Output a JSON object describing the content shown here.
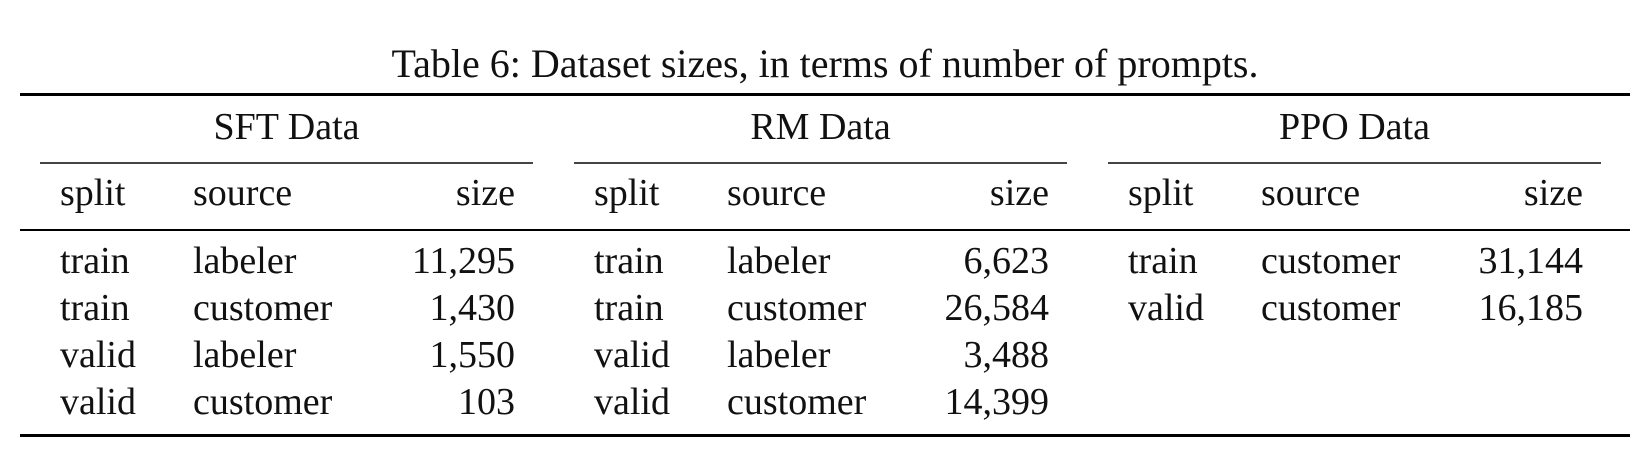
{
  "caption": "Table 6: Dataset sizes, in terms of number of prompts.",
  "columns": {
    "split": "split",
    "source": "source",
    "size": "size"
  },
  "groups": [
    {
      "title": "SFT Data",
      "rows": [
        {
          "split": "train",
          "source": "labeler",
          "size": "11,295"
        },
        {
          "split": "train",
          "source": "customer",
          "size": "1,430"
        },
        {
          "split": "valid",
          "source": "labeler",
          "size": "1,550"
        },
        {
          "split": "valid",
          "source": "customer",
          "size": "103"
        }
      ]
    },
    {
      "title": "RM Data",
      "rows": [
        {
          "split": "train",
          "source": "labeler",
          "size": "6,623"
        },
        {
          "split": "train",
          "source": "customer",
          "size": "26,584"
        },
        {
          "split": "valid",
          "source": "labeler",
          "size": "3,488"
        },
        {
          "split": "valid",
          "source": "customer",
          "size": "14,399"
        }
      ]
    },
    {
      "title": "PPO Data",
      "rows": [
        {
          "split": "train",
          "source": "customer",
          "size": "31,144"
        },
        {
          "split": "valid",
          "source": "customer",
          "size": "16,185"
        }
      ]
    }
  ]
}
